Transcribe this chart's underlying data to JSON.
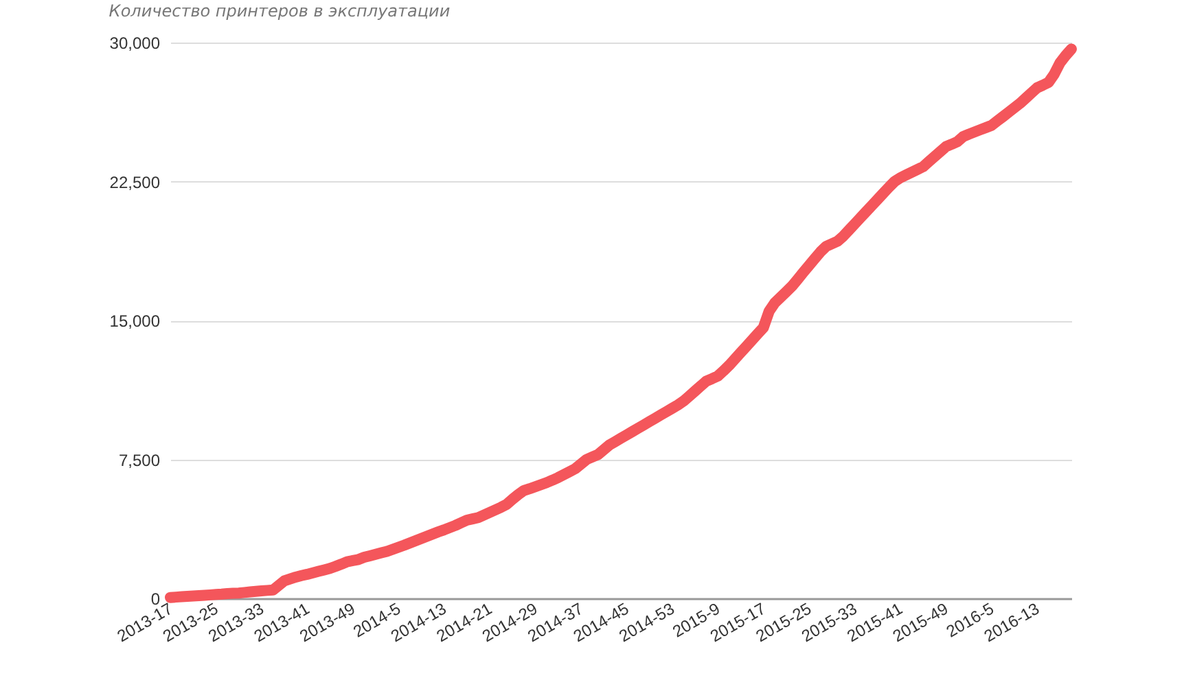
{
  "chart_data": {
    "type": "line",
    "title": "Количество принтеров в эксплуатации",
    "categories": [
      "2013-17",
      null,
      null,
      null,
      null,
      null,
      null,
      null,
      "2013-25",
      null,
      null,
      null,
      null,
      null,
      null,
      null,
      "2013-33",
      null,
      null,
      null,
      null,
      null,
      null,
      null,
      "2013-41",
      null,
      null,
      null,
      null,
      null,
      null,
      null,
      "2013-49",
      null,
      null,
      null,
      null,
      null,
      null,
      null,
      "2014-5",
      null,
      null,
      null,
      null,
      null,
      null,
      null,
      "2014-13",
      null,
      null,
      null,
      null,
      null,
      null,
      null,
      "2014-21",
      null,
      null,
      null,
      null,
      null,
      null,
      null,
      "2014-29",
      null,
      null,
      null,
      null,
      null,
      null,
      null,
      "2014-37",
      null,
      null,
      null,
      null,
      null,
      null,
      null,
      "2014-45",
      null,
      null,
      null,
      null,
      null,
      null,
      null,
      "2014-53",
      null,
      null,
      null,
      null,
      null,
      null,
      null,
      "2015-9",
      null,
      null,
      null,
      null,
      null,
      null,
      null,
      "2015-17",
      null,
      null,
      null,
      null,
      null,
      null,
      null,
      "2015-25",
      null,
      null,
      null,
      null,
      null,
      null,
      null,
      "2015-33",
      null,
      null,
      null,
      null,
      null,
      null,
      null,
      "2015-41",
      null,
      null,
      null,
      null,
      null,
      null,
      null,
      "2015-49",
      null,
      null,
      null,
      null,
      null,
      null,
      null,
      "2016-5",
      null,
      null,
      null,
      null,
      null,
      null,
      null,
      "2016-13",
      null,
      null,
      null,
      null,
      null,
      null
    ],
    "series": [
      {
        "color": "#f4565b",
        "values": [
          50,
          70,
          90,
          110,
          130,
          150,
          170,
          190,
          210,
          230,
          260,
          280,
          290,
          320,
          350,
          380,
          410,
          430,
          450,
          700,
          950,
          1050,
          1150,
          1230,
          1300,
          1380,
          1460,
          1540,
          1620,
          1730,
          1850,
          1980,
          2040,
          2100,
          2220,
          2300,
          2380,
          2460,
          2540,
          2650,
          2760,
          2870,
          2990,
          3110,
          3230,
          3350,
          3470,
          3590,
          3700,
          3820,
          3940,
          4080,
          4220,
          4290,
          4360,
          4500,
          4640,
          4780,
          4920,
          5080,
          5350,
          5600,
          5820,
          5920,
          6030,
          6140,
          6250,
          6380,
          6520,
          6680,
          6840,
          7000,
          7250,
          7500,
          7630,
          7760,
          8020,
          8280,
          8460,
          8640,
          8820,
          9000,
          9180,
          9360,
          9540,
          9720,
          9900,
          10080,
          10260,
          10440,
          10650,
          10920,
          11190,
          11460,
          11730,
          11860,
          12000,
          12280,
          12580,
          12920,
          13260,
          13600,
          13940,
          14280,
          14620,
          15500,
          15950,
          16250,
          16550,
          16850,
          17220,
          17600,
          17970,
          18340,
          18700,
          19000,
          19140,
          19280,
          19550,
          19880,
          20210,
          20540,
          20870,
          21200,
          21530,
          21860,
          22190,
          22500,
          22700,
          22850,
          23000,
          23150,
          23300,
          23570,
          23840,
          24110,
          24380,
          24510,
          24650,
          24920,
          25050,
          25170,
          25290,
          25410,
          25530,
          25770,
          26000,
          26240,
          26480,
          26720,
          27000,
          27280,
          27560,
          27700,
          27850,
          28300,
          28900,
          29300,
          29650
        ]
      }
    ],
    "ylim": [
      0,
      30000
    ],
    "yticks": [
      {
        "value": 0,
        "label": "0"
      },
      {
        "value": 7500,
        "label": "7,500"
      },
      {
        "value": 15000,
        "label": "15,000"
      },
      {
        "value": 22500,
        "label": "22,500"
      },
      {
        "value": 30000,
        "label": "30,000"
      }
    ],
    "grid": "y",
    "line_style": "solid"
  }
}
